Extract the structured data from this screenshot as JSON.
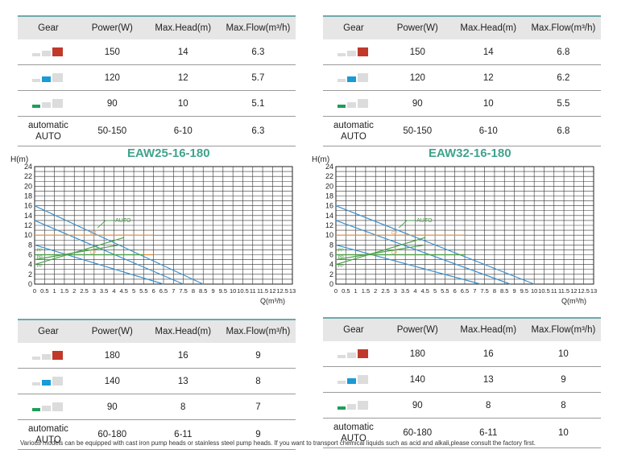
{
  "tables": [
    {
      "headers": [
        "Gear",
        "Power(W)",
        "Max.Head(m)",
        "Max.Flow(m³/h)"
      ],
      "rows": [
        {
          "gear": 3,
          "power": "150",
          "head": "14",
          "flow": "6.3"
        },
        {
          "gear": 2,
          "power": "120",
          "head": "12",
          "flow": "5.7"
        },
        {
          "gear": 1,
          "power": "90",
          "head": "10",
          "flow": "5.1"
        },
        {
          "gear": 0,
          "gear_label": "automatic",
          "gear_label2": "AUTO",
          "power": "50-150",
          "head": "6-10",
          "flow": "6.3"
        }
      ]
    },
    {
      "headers": [
        "Gear",
        "Power(W)",
        "Max.Head(m)",
        "Max.Flow(m³/h)"
      ],
      "rows": [
        {
          "gear": 3,
          "power": "150",
          "head": "14",
          "flow": "6.8"
        },
        {
          "gear": 2,
          "power": "120",
          "head": "12",
          "flow": "6.2"
        },
        {
          "gear": 1,
          "power": "90",
          "head": "10",
          "flow": "5.5"
        },
        {
          "gear": 0,
          "gear_label": "automatic",
          "gear_label2": "AUTO",
          "power": "50-150",
          "head": "6-10",
          "flow": "6.8"
        }
      ]
    },
    {
      "headers": [
        "Gear",
        "Power(W)",
        "Max.Head(m)",
        "Max.Flow(m³/h)"
      ],
      "rows": [
        {
          "gear": 3,
          "power": "180",
          "head": "16",
          "flow": "9"
        },
        {
          "gear": 2,
          "power": "140",
          "head": "13",
          "flow": "8"
        },
        {
          "gear": 1,
          "power": "90",
          "head": "8",
          "flow": "7"
        },
        {
          "gear": 0,
          "gear_label": "automatic",
          "gear_label2": "AUTO",
          "power": "60-180",
          "head": "6-11",
          "flow": "9"
        }
      ]
    },
    {
      "headers": [
        "Gear",
        "Power(W)",
        "Max.Head(m)",
        "Max.Flow(m³/h)"
      ],
      "rows": [
        {
          "gear": 3,
          "power": "180",
          "head": "16",
          "flow": "10"
        },
        {
          "gear": 2,
          "power": "140",
          "head": "13",
          "flow": "9"
        },
        {
          "gear": 1,
          "power": "90",
          "head": "8",
          "flow": "8"
        },
        {
          "gear": 0,
          "gear_label": "automatic",
          "gear_label2": "AUTO",
          "power": "60-180",
          "head": "6-11",
          "flow": "10"
        }
      ]
    }
  ],
  "gear_colors": {
    "3": "#c0392b",
    "2": "#1a9ad6",
    "1": "#1e9e5a",
    "off": "#dcdcdc"
  },
  "chart_data": [
    {
      "type": "line",
      "title": "EAW25-16-180",
      "ylabel": "H(m)",
      "xlabel": "Q(m³/h)",
      "xlim": [
        0,
        13
      ],
      "ylim": [
        0,
        24
      ],
      "xticks": [
        "0",
        "0.5",
        "1",
        "1.5",
        "2",
        "2.5",
        "3",
        "3.5",
        "4",
        "4.5",
        "5",
        "5.5",
        "6",
        "6.5",
        "7",
        "7.5",
        "8",
        "8.5",
        "9",
        "9.5",
        "10",
        "10.5",
        "11",
        "11.5",
        "12",
        "12.5",
        "13"
      ],
      "yticks": [
        "0",
        "2",
        "4",
        "6",
        "8",
        "10",
        "12",
        "14",
        "16",
        "18",
        "20",
        "22",
        "24"
      ],
      "series": [
        {
          "name": "",
          "color": "#3a8fcf",
          "points": [
            [
              0,
              16
            ],
            [
              8.5,
              0
            ]
          ]
        },
        {
          "name": "",
          "color": "#3a8fcf",
          "points": [
            [
              0,
              13
            ],
            [
              7.5,
              0
            ]
          ]
        },
        {
          "name": "",
          "color": "#3a8fcf",
          "points": [
            [
              0,
              8
            ],
            [
              6.5,
              0
            ]
          ]
        },
        {
          "name": "",
          "color": "#e08a3a",
          "points": [
            [
              0,
              10
            ],
            [
              6,
              10
            ]
          ]
        },
        {
          "name": "",
          "color": "#e08a3a",
          "points": [
            [
              0,
              6
            ],
            [
              6,
              6
            ]
          ]
        },
        {
          "name": "",
          "color": "#4aa14a",
          "points": [
            [
              0,
              4
            ],
            [
              4.5,
              9.5
            ]
          ]
        },
        {
          "name": "",
          "color": "#4aa14a",
          "points": [
            [
              0,
              5
            ],
            [
              4.3,
              8
            ]
          ]
        },
        {
          "name": "",
          "color": "#4aa14a",
          "points": [
            [
              0,
              6
            ],
            [
              5.5,
              6
            ]
          ]
        }
      ],
      "annotations": [
        {
          "text": "AUTO",
          "x": 3.5,
          "y": 13
        },
        {
          "text": "PP",
          "x": 0.1,
          "y": 7
        },
        {
          "text": "PP",
          "x": 0.1,
          "y": 5.5
        },
        {
          "text": "PP",
          "x": 0.1,
          "y": 3.8
        },
        {
          "text": "CP",
          "x": 2.8,
          "y": 10.5
        },
        {
          "text": "CP",
          "x": 2.8,
          "y": 6.5
        }
      ]
    },
    {
      "type": "line",
      "title": "EAW32-16-180",
      "ylabel": "H(m)",
      "xlabel": "Q(m³/h)",
      "xlim": [
        0,
        13
      ],
      "ylim": [
        0,
        24
      ],
      "xticks": [
        "0",
        "0.5",
        "1",
        "1.5",
        "2",
        "2.5",
        "3",
        "3.5",
        "4",
        "4.5",
        "5",
        "5.5",
        "6",
        "6.5",
        "7",
        "7.5",
        "8",
        "8.5",
        "9",
        "9.5",
        "10",
        "10.5",
        "11",
        "11.5",
        "12",
        "12.5",
        "13"
      ],
      "yticks": [
        "0",
        "2",
        "4",
        "6",
        "8",
        "10",
        "12",
        "14",
        "16",
        "18",
        "20",
        "22",
        "24"
      ],
      "series": [
        {
          "name": "",
          "color": "#3a8fcf",
          "points": [
            [
              0,
              16
            ],
            [
              10,
              0
            ]
          ]
        },
        {
          "name": "",
          "color": "#3a8fcf",
          "points": [
            [
              0,
              13
            ],
            [
              8.8,
              0
            ]
          ]
        },
        {
          "name": "",
          "color": "#3a8fcf",
          "points": [
            [
              0,
              8
            ],
            [
              7.3,
              0
            ]
          ]
        },
        {
          "name": "",
          "color": "#e08a3a",
          "points": [
            [
              0,
              10
            ],
            [
              6.5,
              10
            ]
          ]
        },
        {
          "name": "",
          "color": "#e08a3a",
          "points": [
            [
              0,
              6
            ],
            [
              6.5,
              6
            ]
          ]
        },
        {
          "name": "",
          "color": "#4aa14a",
          "points": [
            [
              0,
              4
            ],
            [
              4.5,
              9.5
            ]
          ]
        },
        {
          "name": "",
          "color": "#4aa14a",
          "points": [
            [
              0,
              5
            ],
            [
              4.5,
              8
            ]
          ]
        },
        {
          "name": "",
          "color": "#4aa14a",
          "points": [
            [
              0,
              6
            ],
            [
              6.5,
              6
            ]
          ]
        }
      ],
      "annotations": [
        {
          "text": "AUTO",
          "x": 3.5,
          "y": 13
        },
        {
          "text": "PP",
          "x": 0.1,
          "y": 7
        },
        {
          "text": "PP",
          "x": 0.1,
          "y": 5.5
        },
        {
          "text": "PP",
          "x": 0.1,
          "y": 3.8
        },
        {
          "text": "CP",
          "x": 2.8,
          "y": 10.5
        },
        {
          "text": "CP",
          "x": 2.8,
          "y": 6.5
        }
      ]
    }
  ],
  "footnote": "Various models can be equipped with cast iron pump heads or stainless steel pump heads. If you want to transport chemical liquids such as acid and alkali,please consult the factory first."
}
